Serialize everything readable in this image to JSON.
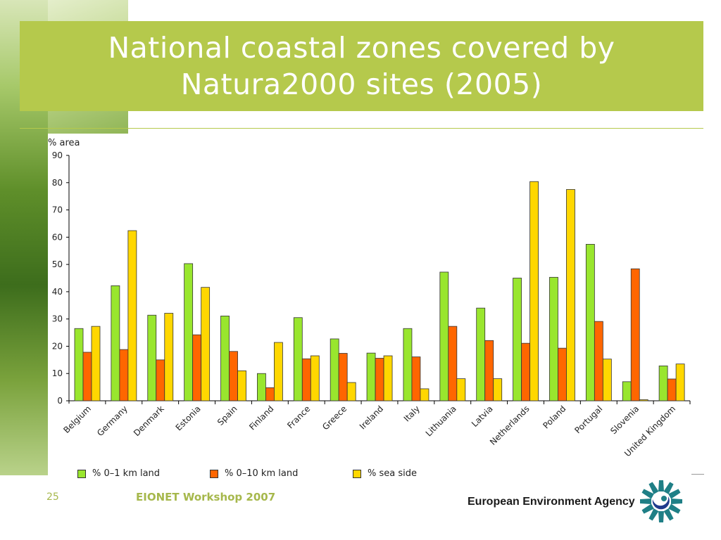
{
  "slide": {
    "title": "National coastal zones covered by\nNatura2000 sites (2005)",
    "page_number": "25",
    "event": "EIONET Workshop 2007",
    "agency": "European Environment Agency"
  },
  "colors": {
    "title_background": "#b5c94c",
    "footer_text": "#a6b84c"
  },
  "chart_data": {
    "type": "bar",
    "ylabel": "% area",
    "ylim": [
      0,
      90
    ],
    "yticks": [
      0,
      10,
      20,
      30,
      40,
      50,
      60,
      70,
      80,
      90
    ],
    "grid": false,
    "legend_position": "bottom",
    "categories": [
      "Belgium",
      "Germany",
      "Denmark",
      "Estonia",
      "Spain",
      "Finland",
      "France",
      "Greece",
      "Ireland",
      "Italy",
      "Lithuania",
      "Latvia",
      "Netherlands",
      "Poland",
      "Portugal",
      "Slovenia",
      "United Kingdom"
    ],
    "series": [
      {
        "name": "% 0–1 km land",
        "color": "#99e62e",
        "values": [
          26.5,
          42.2,
          31.4,
          50.3,
          31.1,
          10.0,
          30.5,
          22.7,
          17.5,
          26.5,
          47.2,
          34.0,
          45.0,
          45.3,
          57.4,
          7.0,
          12.8
        ]
      },
      {
        "name": "% 0–10 km land",
        "color": "#ff6600",
        "values": [
          17.8,
          18.8,
          15.0,
          24.2,
          18.1,
          4.8,
          15.4,
          17.4,
          15.6,
          16.1,
          27.3,
          22.1,
          21.1,
          19.3,
          29.1,
          48.4,
          8.0
        ]
      },
      {
        "name": "% sea side",
        "color": "#ffd700",
        "values": [
          27.3,
          62.4,
          32.1,
          41.6,
          11.0,
          21.4,
          16.5,
          6.7,
          16.5,
          4.4,
          8.1,
          8.1,
          80.4,
          77.5,
          15.3,
          0.4,
          13.5
        ]
      }
    ]
  }
}
